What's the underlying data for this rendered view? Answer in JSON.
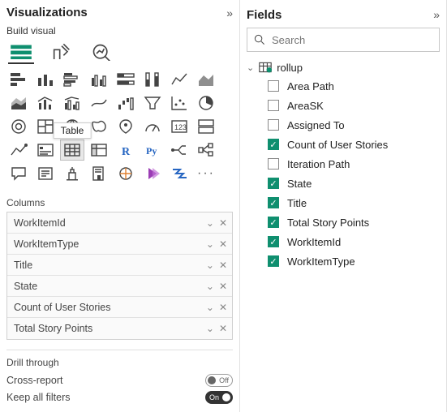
{
  "viz": {
    "title": "Visualizations",
    "subhead": "Build visual",
    "tooltip": "Table",
    "columns_label": "Columns",
    "columns": [
      "WorkItemId",
      "WorkItemType",
      "Title",
      "State",
      "Count of User Stories",
      "Total Story Points"
    ],
    "drill_label": "Drill through",
    "cross_report_label": "Cross-report",
    "cross_report_state": "Off",
    "keep_filters_label": "Keep all filters",
    "keep_filters_state": "On"
  },
  "fields": {
    "title": "Fields",
    "search_placeholder": "Search",
    "table_name": "rollup",
    "items": [
      {
        "label": "Area Path",
        "checked": false
      },
      {
        "label": "AreaSK",
        "checked": false
      },
      {
        "label": "Assigned To",
        "checked": false
      },
      {
        "label": "Count of User Stories",
        "checked": true
      },
      {
        "label": "Iteration Path",
        "checked": false
      },
      {
        "label": "State",
        "checked": true
      },
      {
        "label": "Title",
        "checked": true
      },
      {
        "label": "Total Story Points",
        "checked": true
      },
      {
        "label": "WorkItemId",
        "checked": true
      },
      {
        "label": "WorkItemType",
        "checked": true
      }
    ]
  },
  "styling": {
    "accent_color": "#0f8f6f",
    "border_color": "#e0e0e0",
    "well_border": "#d0d0d0",
    "text_color": "#222",
    "muted_text": "#666",
    "font_family": "Segoe UI"
  }
}
